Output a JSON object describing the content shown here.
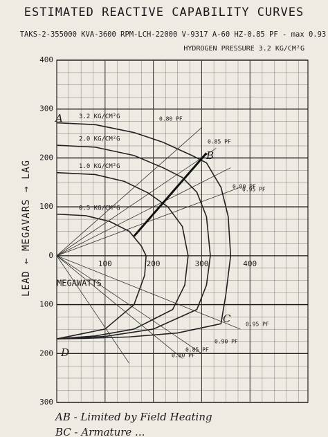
{
  "chart_data": {
    "type": "line",
    "title": "ESTIMATED REACTIVE CAPABILITY CURVES",
    "subtitle": "TAKS-2-355000 KVA-3600 RPM-LCH-22000 V-9317 A-60 HZ-0.85 PF - max 0.93",
    "hydrogen_label": "HYDROGEN PRESSURE 3.2 KG/CM²G",
    "y_label": "LEAD ← MEGAVARS → LAG",
    "x_label": "MEGAWATTS",
    "xlim": [
      0,
      520
    ],
    "ylim": [
      -300,
      400
    ],
    "xticks": [
      100,
      200,
      300,
      400
    ],
    "yticks": [
      400,
      300,
      200,
      100,
      0,
      {
        "value": -100,
        "label": "100"
      },
      {
        "value": -200,
        "label": "200"
      },
      {
        "value": -300,
        "label": "300"
      }
    ],
    "grid": true,
    "series": [
      {
        "name": "3.2 KG/CM²G",
        "color": "#222",
        "x": [
          0,
          80,
          160,
          220,
          280,
          310,
          340,
          355,
          360,
          350,
          340,
          250,
          150,
          60,
          0
        ],
        "values": [
          272,
          268,
          252,
          232,
          205,
          190,
          140,
          80,
          0,
          -80,
          -139,
          -158,
          -166,
          -169,
          -170
        ]
      },
      {
        "name": "2.0 KG/CM²G",
        "color": "#222",
        "x": [
          0,
          80,
          160,
          220,
          260,
          290,
          310,
          318,
          310,
          290,
          200,
          100,
          0
        ],
        "values": [
          226,
          222,
          205,
          180,
          160,
          130,
          80,
          0,
          -60,
          -110,
          -150,
          -165,
          -170
        ]
      },
      {
        "name": "1.0 KG/CM²G",
        "color": "#222",
        "x": [
          0,
          80,
          140,
          190,
          230,
          260,
          272,
          265,
          240,
          160,
          80,
          0
        ],
        "values": [
          170,
          166,
          152,
          128,
          100,
          60,
          0,
          -60,
          -110,
          -150,
          -164,
          -170
        ]
      },
      {
        "name": "0.5 KG/CM²G",
        "color": "#222",
        "x": [
          0,
          60,
          110,
          150,
          175,
          185,
          182,
          160,
          100,
          0
        ],
        "values": [
          85,
          82,
          70,
          50,
          20,
          0,
          -40,
          -100,
          -150,
          -170
        ]
      }
    ],
    "points": [
      "A",
      "B",
      "C",
      "D"
    ],
    "pf_labels": [
      "0.80 PF",
      "0.85 PF",
      "0.90 PF",
      "0.95 PF",
      "0.95 PF",
      "0.90 PF",
      "0.85 PF",
      "0.80 PF"
    ],
    "notes": [
      "AB - Limited by Field Heating",
      "BC - Armature ..."
    ]
  }
}
